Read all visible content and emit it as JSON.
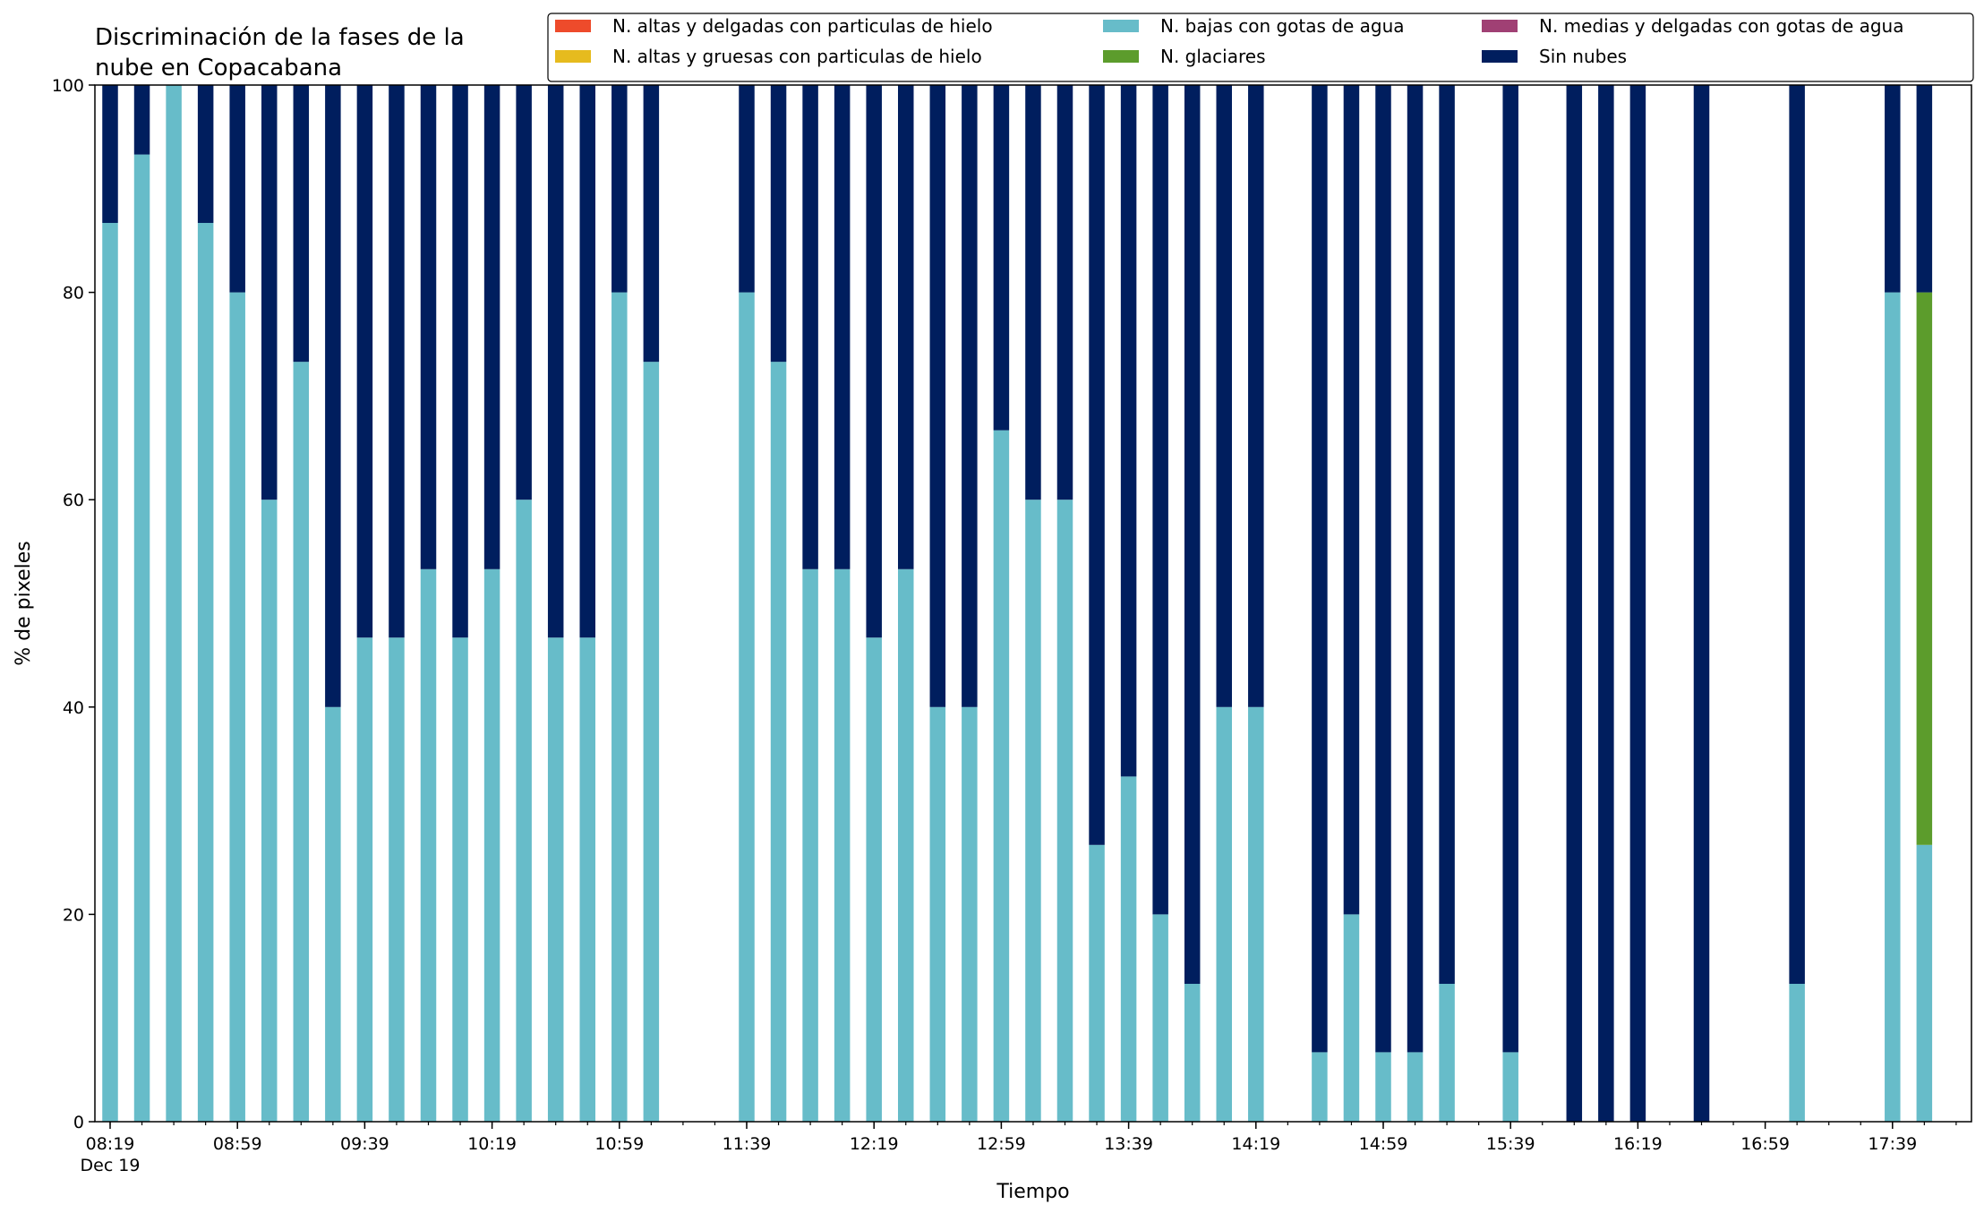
{
  "chart_data": {
    "type": "bar",
    "stacked": true,
    "title": "Discriminación de la fases de la\nnube en Copacabana",
    "xlabel": "Tiempo",
    "ylabel": "% de pixeles",
    "ylim": [
      0,
      100
    ],
    "yticks": [
      0,
      20,
      40,
      60,
      80,
      100
    ],
    "x_start_time": "08:19",
    "x_end_time": "17:59",
    "bin_minutes": 10,
    "xtick_labels": [
      "08:19",
      "08:59",
      "09:39",
      "10:19",
      "10:59",
      "11:39",
      "12:19",
      "12:59",
      "13:39",
      "14:19",
      "14:59",
      "15:39",
      "16:19",
      "16:59",
      "17:39"
    ],
    "xtick_sublabel": "Dec 19",
    "grid": false,
    "legend_position": "top-right",
    "legend_ncol": 3,
    "series": [
      {
        "name": "N. altas y delgadas con particulas de hielo",
        "color": "#ee4b2b",
        "values": [
          0,
          0,
          0,
          0,
          0,
          0,
          0,
          0,
          0,
          0,
          0,
          0,
          0,
          0,
          0,
          0,
          0,
          0,
          0,
          0,
          0,
          0,
          0,
          0,
          0,
          0,
          0,
          0,
          0,
          0,
          0,
          0,
          0,
          0,
          0,
          0,
          0,
          0,
          0,
          0,
          0,
          0,
          0,
          0,
          0,
          0,
          0,
          0,
          0,
          0,
          0,
          0,
          0,
          0,
          0,
          0,
          0,
          0,
          0
        ]
      },
      {
        "name": "N. altas y gruesas con particulas de hielo",
        "color": "#e6bb1e",
        "values": [
          0,
          0,
          0,
          0,
          0,
          0,
          0,
          0,
          0,
          0,
          0,
          0,
          0,
          0,
          0,
          0,
          0,
          0,
          0,
          0,
          0,
          0,
          0,
          0,
          0,
          0,
          0,
          0,
          0,
          0,
          0,
          0,
          0,
          0,
          0,
          0,
          0,
          0,
          0,
          0,
          0,
          0,
          0,
          0,
          0,
          0,
          0,
          0,
          0,
          0,
          0,
          0,
          0,
          0,
          0,
          0,
          0,
          0,
          0
        ]
      },
      {
        "name": "N. bajas con gotas de agua",
        "color": "#67bcc9",
        "values": [
          86.7,
          93.3,
          100,
          86.7,
          80,
          60,
          73.3,
          40,
          46.7,
          46.7,
          53.3,
          46.7,
          53.3,
          60,
          46.7,
          46.7,
          80,
          73.3,
          null,
          null,
          80,
          73.3,
          53.3,
          53.3,
          46.7,
          53.3,
          40,
          40,
          66.7,
          60,
          60,
          26.7,
          33.3,
          20,
          13.3,
          40,
          40,
          null,
          6.7,
          20,
          6.7,
          6.7,
          13.3,
          null,
          6.7,
          null,
          0,
          0,
          0,
          null,
          0,
          null,
          null,
          13.3,
          null,
          null,
          80,
          26.7,
          null
        ]
      },
      {
        "name": "N. glaciares",
        "color": "#5c9c2c",
        "values": [
          0,
          0,
          0,
          0,
          0,
          0,
          0,
          0,
          0,
          0,
          0,
          0,
          0,
          0,
          0,
          0,
          0,
          0,
          null,
          null,
          0,
          0,
          0,
          0,
          0,
          0,
          0,
          0,
          0,
          0,
          0,
          0,
          0,
          0,
          0,
          0,
          0,
          null,
          0,
          0,
          0,
          0,
          0,
          null,
          0,
          null,
          0,
          0,
          0,
          null,
          0,
          null,
          null,
          0,
          null,
          null,
          0,
          53.3,
          null
        ]
      },
      {
        "name": "N. medias y delgadas con gotas de agua",
        "color": "#a04074",
        "values": [
          0,
          0,
          0,
          0,
          0,
          0,
          0,
          0,
          0,
          0,
          0,
          0,
          0,
          0,
          0,
          0,
          0,
          0,
          0,
          0,
          0,
          0,
          0,
          0,
          0,
          0,
          0,
          0,
          0,
          0,
          0,
          0,
          0,
          0,
          0,
          0,
          0,
          0,
          0,
          0,
          0,
          0,
          0,
          0,
          0,
          0,
          0,
          0,
          0,
          0,
          0,
          0,
          0,
          0,
          0,
          0,
          0,
          0,
          0
        ]
      },
      {
        "name": "Sin nubes",
        "color": "#001e5e",
        "values": [
          13.3,
          6.7,
          0,
          13.3,
          20,
          40,
          26.7,
          60,
          53.3,
          53.3,
          46.7,
          53.3,
          46.7,
          40,
          53.3,
          53.3,
          20,
          26.7,
          null,
          null,
          20,
          26.7,
          46.7,
          46.7,
          53.3,
          46.7,
          60,
          60,
          33.3,
          40,
          40,
          73.3,
          66.7,
          80,
          86.7,
          60,
          60,
          null,
          93.3,
          80,
          93.3,
          93.3,
          86.7,
          null,
          93.3,
          null,
          100,
          100,
          100,
          null,
          100,
          null,
          null,
          86.7,
          null,
          null,
          20,
          20,
          null
        ]
      }
    ]
  }
}
